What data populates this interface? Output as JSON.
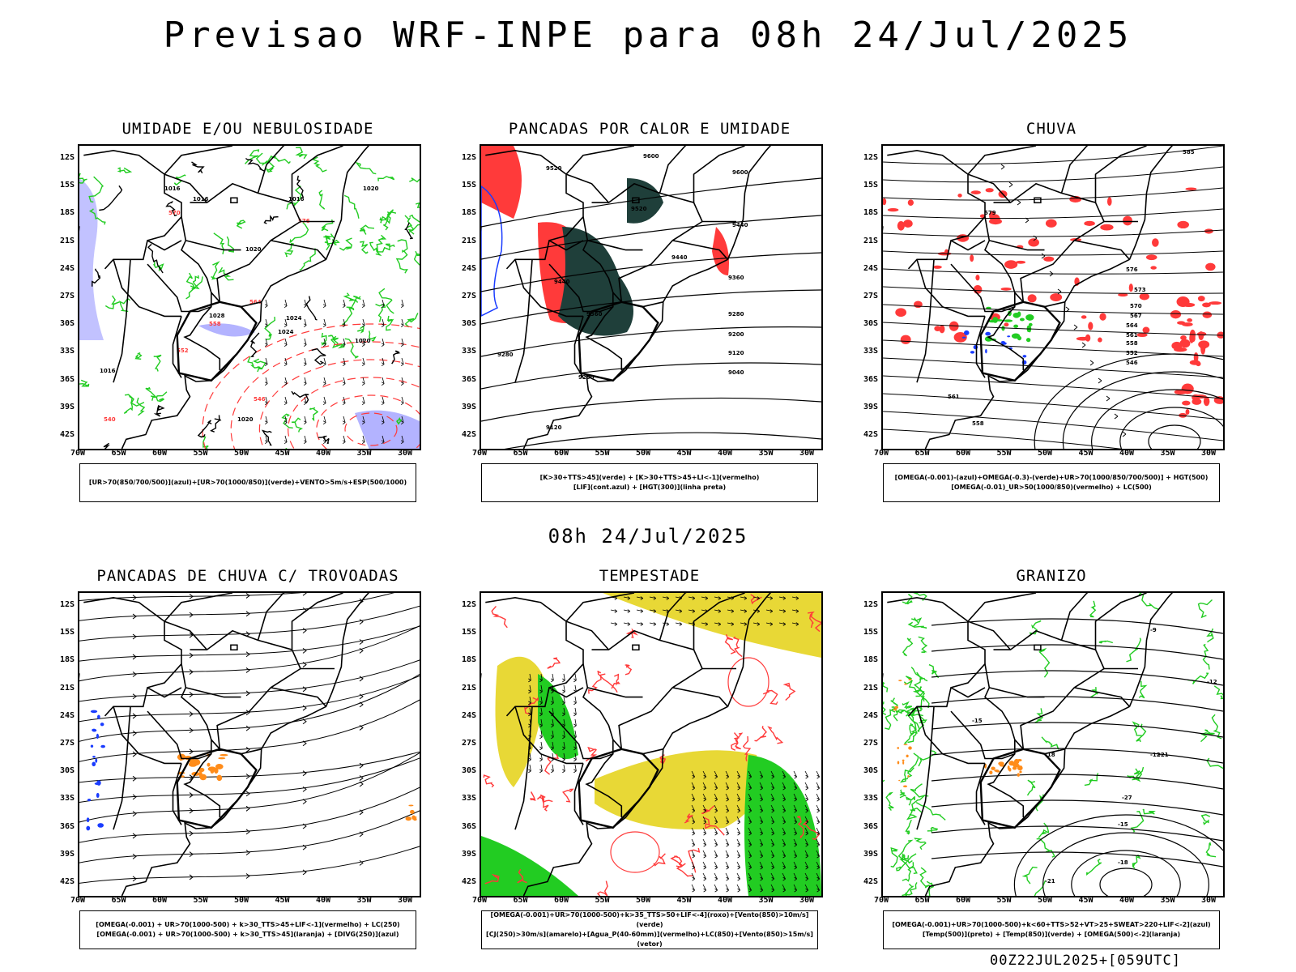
{
  "header": {
    "title": "Previsao WRF-INPE  para 08h 24/Jul/2025"
  },
  "subtitle": "08h 24/Jul/2025",
  "axes": {
    "lat_labels": [
      "12S",
      "15S",
      "18S",
      "21S",
      "24S",
      "27S",
      "30S",
      "33S",
      "36S",
      "39S",
      "42S"
    ],
    "lon_labels": [
      "70W",
      "65W",
      "60W",
      "55W",
      "50W",
      "45W",
      "40W",
      "35W",
      "30W"
    ]
  },
  "panels": [
    {
      "title": "UMIDADE E/OU NEBULOSIDADE",
      "legend": [
        "[UR>70(850/700/500)](azul)+[UR>70(1000/850)](verde)+VENTO>5m/s+ESP(500/1000)"
      ],
      "contour_labels": [
        "1016",
        "1016",
        "1016",
        "1020",
        "1020",
        "1024",
        "1028",
        "1020",
        "1024",
        "1020",
        "1016"
      ],
      "dashed_labels": [
        "570",
        "576",
        "564",
        "558",
        "552",
        "546",
        "540"
      ]
    },
    {
      "title": "PANCADAS POR CALOR E UMIDADE",
      "legend": [
        "[K>30+TTS>45](verde) + [K>30+TTS>45+LI<-1](vermelho)",
        "[LIF](cont.azul) + [HGT(300)](linha preta)"
      ],
      "contour_labels": [
        "9600",
        "9520",
        "9600",
        "9520",
        "9440",
        "9440",
        "9440",
        "9360",
        "9360",
        "9280",
        "9200",
        "9120",
        "9040",
        "9280",
        "9200",
        "9120"
      ]
    },
    {
      "title": "CHUVA",
      "legend": [
        "[OMEGA(-0.001)-(azul)+OMEGA(-0.3)-(verde)+UR>70(1000/850/700/500)] + HGT(500)",
        "[OMEGA(-0.01)_UR>50(1000/850)(vermelho) + LC(500)"
      ],
      "contour_labels": [
        "585",
        "576",
        "573",
        "570",
        "567",
        "564",
        "561",
        "558",
        "552",
        "546",
        "561",
        "558",
        "579",
        "576"
      ]
    },
    {
      "title": "PANCADAS DE CHUVA C/ TROVOADAS",
      "legend": [
        "[OMEGA(-0.001) + UR>70(1000-500) + k>30_TTS>45+LIF<-1](vermelho) + LC(250)",
        "[OMEGA(-0.001) + UR>70(1000-500) + k>30_TTS>45](laranja) + [DIVG(250)](azul)"
      ],
      "contour_labels": []
    },
    {
      "title": "TEMPESTADE",
      "legend": [
        "[OMEGA(-0.001)+UR>70(1000-500)+k>35_TTS>50+LIF<-4](roxo)+[Vento(850)>10m/s](verde)",
        "[CJ(250)>30m/s](amarelo)+[Agua_P(40-60mm)](vermelho)+LC(850)+[Vento(850)>15m/s](vetor)"
      ],
      "contour_labels": []
    },
    {
      "title": "GRANIZO",
      "legend": [
        "[OMEGA(-0.001)+UR>70(1000-500)+k<60+TTS>52+VT>25+SWEAT>220+LIF<-2](azul)",
        "[Temp(500)](preto) + [Temp(850)](verde) + [OMEGA(500)<-2](laranja)"
      ],
      "contour_labels": [
        "-9",
        "-12",
        "-15",
        "-18",
        "-21",
        "-27",
        "-15",
        "-18",
        "-21",
        "-12"
      ]
    }
  ],
  "footer": "00Z22JUL2025+[059UTC]",
  "colors": {
    "blue": "#1a3cff",
    "green": "#22cc22",
    "red": "#ff3a3a",
    "orange": "#ff8c1a",
    "yellow": "#e8d836",
    "darkteal": "#1f3f3a",
    "lavender": "#b3b3ff"
  }
}
